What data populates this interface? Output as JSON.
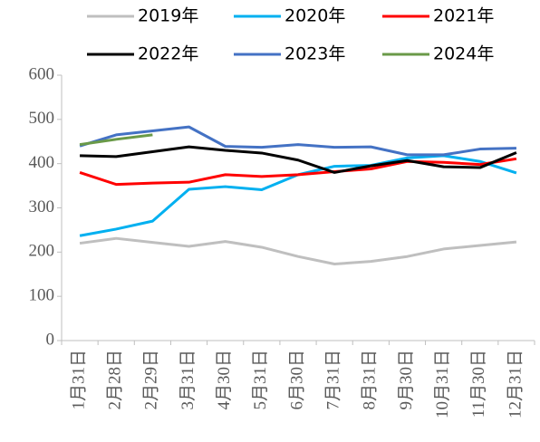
{
  "chart_data": {
    "type": "line",
    "categories": [
      "1月31日",
      "2月28日",
      "2月29日",
      "3月31日",
      "4月30日",
      "5月31日",
      "6月30日",
      "7月31日",
      "8月31日",
      "9月30日",
      "10月31日",
      "11月30日",
      "12月31日"
    ],
    "series": [
      {
        "name": "2019年",
        "color": "#bfbfbf",
        "values": [
          220,
          231,
          222,
          213,
          224,
          211,
          190,
          173,
          179,
          190,
          207,
          215,
          223
        ]
      },
      {
        "name": "2020年",
        "color": "#00b0f0",
        "values": [
          237,
          252,
          270,
          342,
          348,
          341,
          375,
          394,
          396,
          413,
          418,
          405,
          379
        ]
      },
      {
        "name": "2021年",
        "color": "#ff0000",
        "values": [
          380,
          353,
          356,
          358,
          375,
          371,
          375,
          382,
          388,
          405,
          403,
          398,
          411
        ]
      },
      {
        "name": "2022年",
        "color": "#000000",
        "values": [
          418,
          416,
          427,
          438,
          430,
          424,
          408,
          380,
          395,
          407,
          393,
          391,
          425
        ]
      },
      {
        "name": "2023年",
        "color": "#4472c4",
        "values": [
          440,
          465,
          474,
          483,
          439,
          437,
          443,
          437,
          438,
          420,
          420,
          433,
          435
        ]
      },
      {
        "name": "2024年",
        "color": "#6a9a48",
        "values": [
          443,
          455,
          465,
          null,
          null,
          null,
          null,
          null,
          null,
          null,
          null,
          null,
          null
        ]
      }
    ],
    "ylim": [
      0,
      600
    ],
    "yticks": [
      0,
      100,
      200,
      300,
      400,
      500,
      600
    ],
    "grid": false
  }
}
